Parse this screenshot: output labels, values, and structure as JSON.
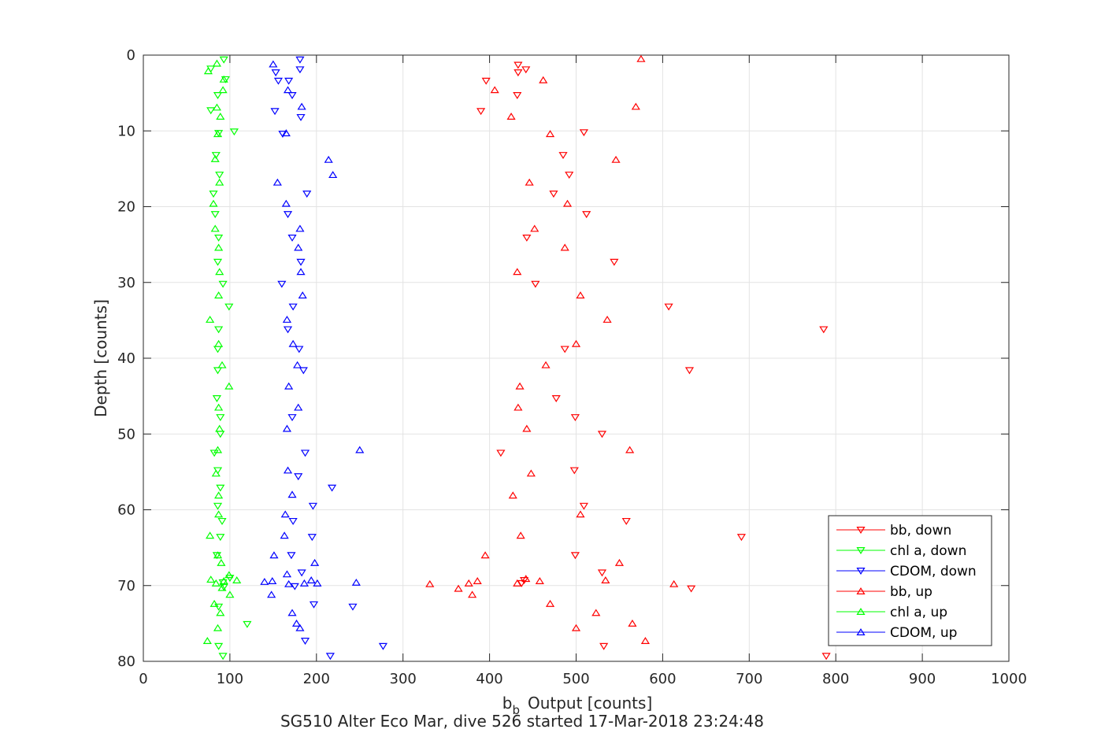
{
  "chart_data": {
    "type": "scatter",
    "title": "",
    "xlabel_main": "b",
    "xlabel_sub": "b",
    "xlabel_rest": "Output [counts]",
    "ylabel": "Depth [counts]",
    "caption": "SG510 Alter Eco Mar, dive 526 started 17-Mar-2018 23:24:48",
    "xlim": [
      0,
      1000
    ],
    "ylim": [
      0,
      80
    ],
    "y_reversed": true,
    "grid": true,
    "legend_position": "bottom-right",
    "xticks": [
      "0",
      "100",
      "200",
      "300",
      "400",
      "500",
      "600",
      "700",
      "800",
      "900",
      "1000"
    ],
    "yticks": [
      "0",
      "10",
      "20",
      "30",
      "40",
      "50",
      "60",
      "70",
      "80"
    ],
    "series": [
      {
        "name": "bb, down",
        "color": "#ff0000",
        "marker": "triangle-down",
        "points": [
          [
            433,
            1.3
          ],
          [
            442,
            1.9
          ],
          [
            433,
            2.3
          ],
          [
            396,
            3.4
          ],
          [
            432,
            5.3
          ],
          [
            390,
            7.4
          ],
          [
            509,
            10.2
          ],
          [
            485,
            13.2
          ],
          [
            492,
            15.8
          ],
          [
            474,
            18.3
          ],
          [
            512,
            21.0
          ],
          [
            443,
            24.1
          ],
          [
            544,
            27.3
          ],
          [
            453,
            30.2
          ],
          [
            607,
            33.2
          ],
          [
            786,
            36.2
          ],
          [
            487,
            38.8
          ],
          [
            631,
            41.6
          ],
          [
            477,
            45.3
          ],
          [
            499,
            47.8
          ],
          [
            530,
            50.0
          ],
          [
            413,
            52.5
          ],
          [
            498,
            54.8
          ],
          [
            509,
            59.5
          ],
          [
            558,
            61.5
          ],
          [
            691,
            63.6
          ],
          [
            499,
            66.0
          ],
          [
            530,
            68.3
          ],
          [
            440,
            69.3
          ],
          [
            437,
            69.7
          ],
          [
            633,
            70.4
          ],
          [
            532,
            78.0
          ],
          [
            789,
            79.3
          ]
        ]
      },
      {
        "name": "chl a, down",
        "color": "#00ff00",
        "marker": "triangle-down",
        "points": [
          [
            93,
            0.6
          ],
          [
            78,
            1.8
          ],
          [
            95,
            3.2
          ],
          [
            86,
            5.3
          ],
          [
            78,
            7.3
          ],
          [
            87,
            10.3
          ],
          [
            105,
            10.1
          ],
          [
            84,
            13.2
          ],
          [
            88,
            15.8
          ],
          [
            81,
            18.3
          ],
          [
            83,
            21.0
          ],
          [
            87,
            24.1
          ],
          [
            86,
            27.3
          ],
          [
            92,
            30.2
          ],
          [
            99,
            33.2
          ],
          [
            87,
            36.2
          ],
          [
            86,
            38.8
          ],
          [
            86,
            41.6
          ],
          [
            85,
            45.3
          ],
          [
            89,
            47.8
          ],
          [
            89,
            50.0
          ],
          [
            82,
            52.5
          ],
          [
            86,
            54.8
          ],
          [
            89,
            57.1
          ],
          [
            86,
            59.5
          ],
          [
            91,
            61.5
          ],
          [
            89,
            63.6
          ],
          [
            85,
            66.0
          ],
          [
            100,
            69.0
          ],
          [
            93,
            70.2
          ],
          [
            92,
            69.6
          ],
          [
            87,
            72.8
          ],
          [
            120,
            75.1
          ],
          [
            87,
            78.0
          ],
          [
            92,
            79.3
          ]
        ]
      },
      {
        "name": "CDOM, down",
        "color": "#0000ff",
        "marker": "triangle-down",
        "points": [
          [
            181,
            0.6
          ],
          [
            181,
            1.9
          ],
          [
            153,
            2.3
          ],
          [
            156,
            3.4
          ],
          [
            168,
            3.4
          ],
          [
            172,
            5.3
          ],
          [
            152,
            7.4
          ],
          [
            182,
            8.2
          ],
          [
            161,
            10.4
          ],
          [
            189,
            18.3
          ],
          [
            167,
            21.0
          ],
          [
            172,
            24.1
          ],
          [
            182,
            27.3
          ],
          [
            160,
            30.2
          ],
          [
            173,
            33.2
          ],
          [
            167,
            36.2
          ],
          [
            180,
            38.8
          ],
          [
            185,
            41.6
          ],
          [
            172,
            47.8
          ],
          [
            187,
            52.5
          ],
          [
            179,
            55.6
          ],
          [
            218,
            57.1
          ],
          [
            196,
            59.5
          ],
          [
            173,
            61.5
          ],
          [
            195,
            63.6
          ],
          [
            171,
            66.0
          ],
          [
            183,
            68.3
          ],
          [
            175,
            70.1
          ],
          [
            242,
            72.8
          ],
          [
            197,
            72.5
          ],
          [
            187,
            77.3
          ],
          [
            277,
            78.0
          ],
          [
            216,
            79.3
          ]
        ]
      },
      {
        "name": "bb, up",
        "color": "#ff0000",
        "marker": "triangle-up",
        "points": [
          [
            575,
            0.5
          ],
          [
            462,
            3.3
          ],
          [
            406,
            4.6
          ],
          [
            425,
            8.1
          ],
          [
            569,
            6.8
          ],
          [
            470,
            10.4
          ],
          [
            546,
            13.8
          ],
          [
            446,
            16.8
          ],
          [
            490,
            19.6
          ],
          [
            452,
            22.9
          ],
          [
            487,
            25.4
          ],
          [
            432,
            28.6
          ],
          [
            505,
            31.7
          ],
          [
            536,
            34.9
          ],
          [
            500,
            38.1
          ],
          [
            465,
            40.9
          ],
          [
            435,
            43.7
          ],
          [
            433,
            46.5
          ],
          [
            443,
            49.3
          ],
          [
            562,
            52.1
          ],
          [
            448,
            55.2
          ],
          [
            427,
            58.1
          ],
          [
            505,
            60.6
          ],
          [
            436,
            63.4
          ],
          [
            395,
            66.0
          ],
          [
            550,
            67.0
          ],
          [
            534,
            69.3
          ],
          [
            458,
            69.4
          ],
          [
            386,
            69.4
          ],
          [
            376,
            69.7
          ],
          [
            442,
            69.1
          ],
          [
            432,
            69.7
          ],
          [
            331,
            69.8
          ],
          [
            364,
            70.4
          ],
          [
            380,
            71.2
          ],
          [
            613,
            69.8
          ],
          [
            470,
            72.4
          ],
          [
            523,
            73.6
          ],
          [
            565,
            75.0
          ],
          [
            500,
            75.6
          ],
          [
            580,
            77.3
          ]
        ]
      },
      {
        "name": "chl a, up",
        "color": "#00ff00",
        "marker": "triangle-up",
        "points": [
          [
            85,
            1.1
          ],
          [
            75,
            2.1
          ],
          [
            93,
            3.2
          ],
          [
            92,
            4.6
          ],
          [
            85,
            6.9
          ],
          [
            89,
            8.1
          ],
          [
            86,
            10.4
          ],
          [
            83,
            13.7
          ],
          [
            88,
            16.8
          ],
          [
            81,
            19.6
          ],
          [
            83,
            22.9
          ],
          [
            87,
            25.4
          ],
          [
            88,
            28.6
          ],
          [
            87,
            31.7
          ],
          [
            77,
            34.9
          ],
          [
            87,
            38.1
          ],
          [
            91,
            40.9
          ],
          [
            99,
            43.7
          ],
          [
            87,
            46.5
          ],
          [
            88,
            49.3
          ],
          [
            86,
            52.1
          ],
          [
            84,
            55.2
          ],
          [
            87,
            58.1
          ],
          [
            87,
            60.6
          ],
          [
            77,
            63.4
          ],
          [
            86,
            66.0
          ],
          [
            90,
            67.0
          ],
          [
            78,
            69.2
          ],
          [
            84,
            69.7
          ],
          [
            108,
            69.3
          ],
          [
            99,
            68.6
          ],
          [
            100,
            71.2
          ],
          [
            91,
            70.3
          ],
          [
            93,
            69.4
          ],
          [
            82,
            72.4
          ],
          [
            89,
            73.6
          ],
          [
            86,
            75.6
          ],
          [
            74,
            77.3
          ]
        ]
      },
      {
        "name": "CDOM, up",
        "color": "#0000ff",
        "marker": "triangle-up",
        "points": [
          [
            150,
            1.2
          ],
          [
            167,
            4.6
          ],
          [
            183,
            6.8
          ],
          [
            165,
            10.3
          ],
          [
            214,
            13.8
          ],
          [
            219,
            15.8
          ],
          [
            155,
            16.8
          ],
          [
            165,
            19.6
          ],
          [
            181,
            22.9
          ],
          [
            179,
            25.4
          ],
          [
            182,
            28.6
          ],
          [
            184,
            31.7
          ],
          [
            166,
            34.9
          ],
          [
            173,
            38.1
          ],
          [
            178,
            40.9
          ],
          [
            168,
            43.7
          ],
          [
            179,
            46.5
          ],
          [
            166,
            49.3
          ],
          [
            250,
            52.1
          ],
          [
            167,
            54.8
          ],
          [
            172,
            58.0
          ],
          [
            164,
            60.6
          ],
          [
            163,
            63.4
          ],
          [
            151,
            66.0
          ],
          [
            198,
            67.0
          ],
          [
            166,
            68.5
          ],
          [
            140,
            69.5
          ],
          [
            149,
            69.4
          ],
          [
            168,
            69.8
          ],
          [
            186,
            69.7
          ],
          [
            194,
            69.3
          ],
          [
            201,
            69.7
          ],
          [
            246,
            69.6
          ],
          [
            148,
            71.2
          ],
          [
            172,
            73.6
          ],
          [
            177,
            75.0
          ],
          [
            181,
            75.6
          ]
        ]
      }
    ]
  }
}
